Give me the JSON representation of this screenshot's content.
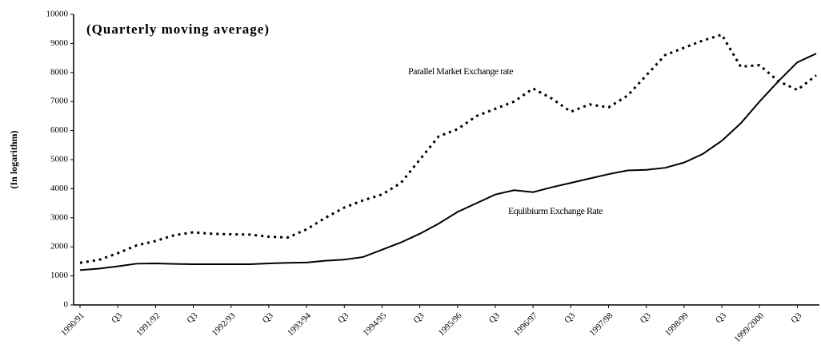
{
  "chart_data": {
    "type": "line",
    "title": "(Quarterly moving average)",
    "y_label": "(In logarithm)",
    "categories": [
      "1990/91",
      null,
      "Q3",
      null,
      "1991/92",
      null,
      "Q3",
      null,
      "1992/93",
      null,
      "Q3",
      null,
      "1993/94",
      null,
      "Q3",
      null,
      "1994/95",
      null,
      "Q3",
      null,
      "1995/96",
      null,
      "Q3",
      null,
      "1996/97",
      null,
      "Q3",
      null,
      "1997/98",
      null,
      "Q3",
      null,
      "1998/99",
      null,
      "Q3",
      null,
      "1999/2000",
      null,
      "Q3",
      null
    ],
    "series": [
      {
        "name": "Parallel Market Exchange rate",
        "color": "#000000",
        "style": "dotted",
        "values": [
          1450,
          1550,
          1780,
          2050,
          2200,
          2400,
          2500,
          2450,
          2430,
          2420,
          2350,
          2320,
          2600,
          3000,
          3350,
          3600,
          3800,
          4200,
          5000,
          5800,
          6050,
          6500,
          6750,
          7000,
          7450,
          7100,
          6650,
          6900,
          6800,
          7200,
          7900,
          8600,
          8850,
          9100,
          9300,
          8200,
          8250,
          7700,
          7400,
          7900
        ]
      },
      {
        "name": "Equlibiurm Exchange Rate",
        "color": "#000000",
        "style": "solid",
        "values": [
          1200,
          1250,
          1330,
          1420,
          1430,
          1410,
          1400,
          1400,
          1400,
          1400,
          1430,
          1450,
          1460,
          1520,
          1560,
          1650,
          1900,
          2150,
          2450,
          2800,
          3200,
          3500,
          3800,
          3950,
          3880,
          4050,
          4200,
          4350,
          4500,
          4630,
          4650,
          4720,
          4900,
          5200,
          5650,
          6250,
          7000,
          7700,
          8350,
          8650
        ]
      }
    ],
    "ylim": [
      0,
      10000
    ],
    "yticks": [
      0,
      1000,
      2000,
      3000,
      4000,
      5000,
      6000,
      7000,
      8000,
      9000,
      10000
    ],
    "grid": false
  }
}
